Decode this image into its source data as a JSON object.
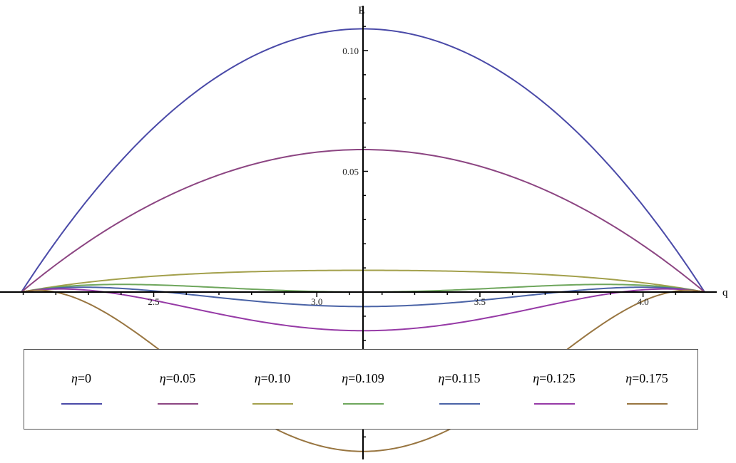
{
  "chart_data": {
    "type": "line",
    "xlabel": "q",
    "ylabel": "E",
    "xlim": [
      2.0944,
      4.1888
    ],
    "ylim": [
      -0.066,
      0.111
    ],
    "x_axis_crossing_y": 0,
    "y_axis_crossing_x": 3.1416,
    "x_ticks": [
      "2.5",
      "3.0",
      "3.5",
      "4.0"
    ],
    "x_tick_values": [
      2.5,
      3.0,
      3.5,
      4.0
    ],
    "y_ticks": [
      "0.05",
      "0.10"
    ],
    "y_tick_values": [
      0.05,
      0.1
    ],
    "legend_position": "bottom",
    "series": [
      {
        "name": "η=0",
        "color": "#4a4aa8",
        "peak": 0.109,
        "shoulder": 0
      },
      {
        "name": "η=0.05",
        "color": "#8c4582",
        "peak": 0.059,
        "shoulder": 0
      },
      {
        "name": "η=0.10",
        "color": "#a3a04c",
        "peak": 0.009,
        "shoulder": 0.012
      },
      {
        "name": "η=0.109",
        "color": "#6ea65c",
        "peak": 0.0,
        "shoulder": 0.0095
      },
      {
        "name": "η=0.115",
        "color": "#4a63a6",
        "peak": -0.006,
        "shoulder": 0.0075
      },
      {
        "name": "η=0.125",
        "color": "#963aa6",
        "peak": -0.016,
        "shoulder": 0.005
      },
      {
        "name": "η=0.175",
        "color": "#987540",
        "peak": -0.066,
        "shoulder": -0.005
      }
    ]
  },
  "legend": {
    "items": [
      {
        "prefix": "η",
        "value": "=0",
        "color": "#4a4aa8"
      },
      {
        "prefix": "η",
        "value": "=0.05",
        "color": "#8c4582"
      },
      {
        "prefix": "η",
        "value": "=0.10",
        "color": "#a3a04c"
      },
      {
        "prefix": "η",
        "value": "=0.109",
        "color": "#6ea65c"
      },
      {
        "prefix": "η",
        "value": "=0.115",
        "color": "#4a63a6"
      },
      {
        "prefix": "η",
        "value": "=0.125",
        "color": "#963aa6"
      },
      {
        "prefix": "η",
        "value": "=0.175",
        "color": "#987540"
      }
    ]
  }
}
